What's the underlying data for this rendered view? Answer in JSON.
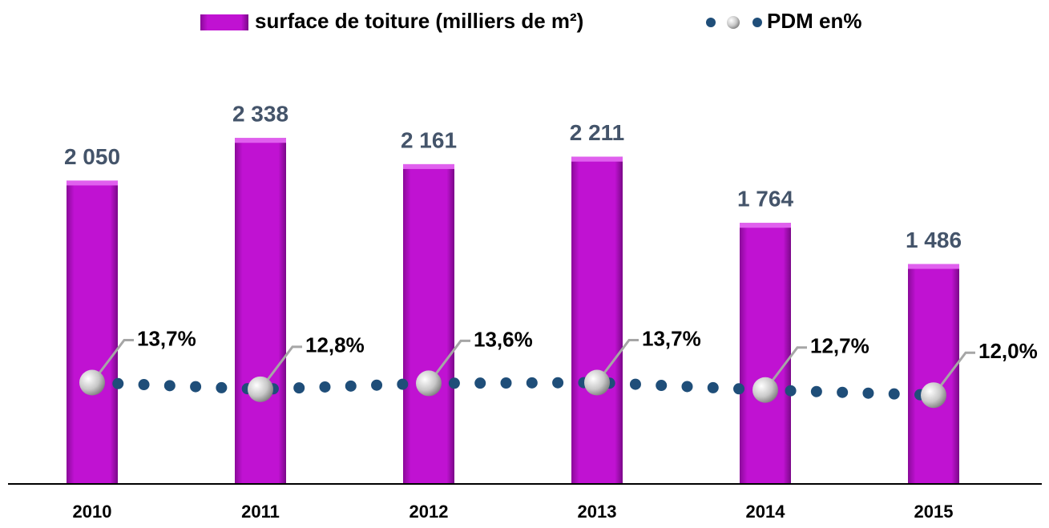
{
  "chart_data": {
    "type": "bar_line",
    "categories": [
      "2010",
      "2011",
      "2012",
      "2013",
      "2014",
      "2015"
    ],
    "series": [
      {
        "name": "surface de toiture (milliers de m²)",
        "type": "bar",
        "color": "#c012d2",
        "values": [
          2050,
          2338,
          2161,
          2211,
          1764,
          1486
        ],
        "value_labels": [
          "2 050",
          "2 338",
          "2 161",
          "2 211",
          "1 764",
          "1 486"
        ]
      },
      {
        "name": "PDM en%",
        "type": "line",
        "axis": "y2",
        "color": "#1f4e79",
        "values": [
          13.7,
          12.8,
          13.6,
          13.7,
          12.7,
          12.0
        ],
        "value_labels": [
          "13,7%",
          "12,8%",
          "13,6%",
          "13,7%",
          "12,7%",
          "12,0%"
        ]
      }
    ],
    "ylim": [
      0,
      3000
    ],
    "y2lim": [
      0,
      60
    ]
  }
}
